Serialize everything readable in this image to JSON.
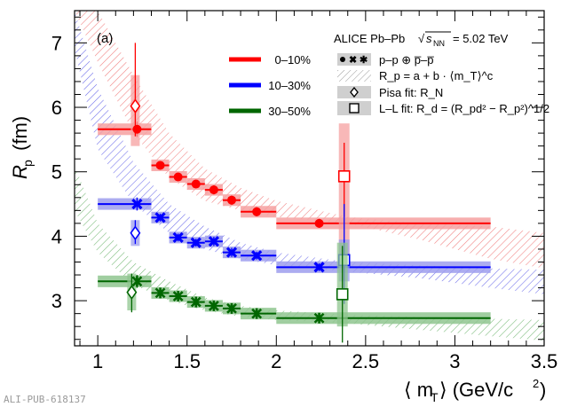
{
  "chart_data": {
    "type": "scatter",
    "panel_label": "(a)",
    "experiment": "ALICE Pb–Pb",
    "energy_symbol": "s",
    "energy_subscript": "NN",
    "energy_value": "= 5.02 TeV",
    "xlabel": "⟨ m",
    "xlabel_sub": "T",
    "xlabel_unit": "⟩ (GeV/c",
    "xlabel_unit_sup": "2",
    "xlabel_close": ")",
    "ylabel": "R",
    "ylabel_sub": "p",
    "ylabel_unit": "(fm)",
    "xlim": [
      0.87,
      3.5
    ],
    "ylim": [
      2.3,
      7.5
    ],
    "xticks": [
      1,
      1.5,
      2,
      2.5,
      3,
      3.5
    ],
    "xtick_labels": [
      "1",
      "1.5",
      "2",
      "2.5",
      "3",
      "3.5"
    ],
    "yticks": [
      3,
      4,
      5,
      6,
      7
    ],
    "ytick_labels": [
      "3",
      "4",
      "5",
      "6",
      "7"
    ],
    "watermark": "ALI-PUB-618137",
    "legend_centrality": [
      {
        "label": "0–10%",
        "color": "#ff0000"
      },
      {
        "label": "10–30%",
        "color": "#0000ff"
      },
      {
        "label": "30–50%",
        "color": "#006600"
      }
    ],
    "legend_symbols": [
      {
        "label": "p–p ⊕ p̅–p̅",
        "kind": "markers"
      },
      {
        "label": "R_p = a + b · ⟨m_T⟩^c",
        "kind": "hatch"
      },
      {
        "label": "Pisa fit: R_N",
        "kind": "diamond"
      },
      {
        "label": "L–L fit: R_d = (R_pd² − R_p²)^1/2",
        "kind": "square"
      }
    ],
    "series": [
      {
        "name": "0–10%",
        "color": "#ff0000",
        "fill": "#f6a0a0",
        "points": [
          {
            "x": 1.22,
            "y": 5.66,
            "xlo": 1.0,
            "xhi": 1.3,
            "ey": 0.12,
            "marker": "circle"
          },
          {
            "x": 1.35,
            "y": 5.1,
            "xlo": 1.3,
            "xhi": 1.4,
            "ey": 0.06,
            "marker": "circle"
          },
          {
            "x": 1.45,
            "y": 4.92,
            "xlo": 1.4,
            "xhi": 1.5,
            "ey": 0.06,
            "marker": "circle"
          },
          {
            "x": 1.55,
            "y": 4.81,
            "xlo": 1.5,
            "xhi": 1.6,
            "ey": 0.06,
            "marker": "circle"
          },
          {
            "x": 1.65,
            "y": 4.72,
            "xlo": 1.6,
            "xhi": 1.7,
            "ey": 0.07,
            "marker": "circle"
          },
          {
            "x": 1.75,
            "y": 4.56,
            "xlo": 1.7,
            "xhi": 1.8,
            "ey": 0.07,
            "marker": "circle"
          },
          {
            "x": 1.89,
            "y": 4.38,
            "xlo": 1.8,
            "xhi": 2.0,
            "ey": 0.07,
            "marker": "circle"
          },
          {
            "x": 2.24,
            "y": 4.2,
            "xlo": 2.0,
            "xhi": 3.2,
            "ey": 0.07,
            "marker": "circle"
          }
        ],
        "fit_band": [
          {
            "x": 0.87,
            "ylo": 7.5,
            "yhi": 7.5
          },
          {
            "x": 1.0,
            "ylo": 6.7,
            "yhi": 7.5
          },
          {
            "x": 1.2,
            "ylo": 5.6,
            "yhi": 6.5
          },
          {
            "x": 1.4,
            "ylo": 4.9,
            "yhi": 5.6
          },
          {
            "x": 1.6,
            "ylo": 4.55,
            "yhi": 5.05
          },
          {
            "x": 1.8,
            "ylo": 4.4,
            "yhi": 4.75
          },
          {
            "x": 2.0,
            "ylo": 4.3,
            "yhi": 4.55
          },
          {
            "x": 2.4,
            "ylo": 4.2,
            "yhi": 4.3
          },
          {
            "x": 2.8,
            "ylo": 3.95,
            "yhi": 4.2
          },
          {
            "x": 3.2,
            "ylo": 3.65,
            "yhi": 4.15
          },
          {
            "x": 3.5,
            "ylo": 3.5,
            "yhi": 4.05
          }
        ],
        "pisa": {
          "x": 1.21,
          "y": 6.02,
          "elo": 5.55,
          "ehi": 7.0,
          "syslo": 5.4,
          "syshi": 6.5
        },
        "ll": {
          "x": 2.38,
          "y": 4.93,
          "elo": 4.3,
          "ehi": 5.45,
          "syslo": 3.6,
          "syshi": 5.75
        }
      },
      {
        "name": "10–30%",
        "color": "#0000ff",
        "fill": "#9d9ded",
        "points": [
          {
            "x": 1.22,
            "y": 4.5,
            "xlo": 1.0,
            "xhi": 1.3,
            "ey": 0.1,
            "marker": "cross"
          },
          {
            "x": 1.35,
            "y": 4.29,
            "xlo": 1.3,
            "xhi": 1.4,
            "ey": 0.06,
            "marker": "cross"
          },
          {
            "x": 1.45,
            "y": 3.98,
            "xlo": 1.4,
            "xhi": 1.5,
            "ey": 0.06,
            "marker": "cross"
          },
          {
            "x": 1.55,
            "y": 3.9,
            "xlo": 1.5,
            "xhi": 1.6,
            "ey": 0.06,
            "marker": "cross"
          },
          {
            "x": 1.65,
            "y": 3.92,
            "xlo": 1.6,
            "xhi": 1.7,
            "ey": 0.07,
            "marker": "cross"
          },
          {
            "x": 1.75,
            "y": 3.75,
            "xlo": 1.7,
            "xhi": 1.8,
            "ey": 0.07,
            "marker": "cross"
          },
          {
            "x": 1.89,
            "y": 3.7,
            "xlo": 1.8,
            "xhi": 2.0,
            "ey": 0.06,
            "marker": "cross"
          },
          {
            "x": 2.24,
            "y": 3.52,
            "xlo": 2.0,
            "xhi": 3.2,
            "ey": 0.06,
            "marker": "cross"
          }
        ],
        "fit_band": [
          {
            "x": 0.87,
            "ylo": 6.9,
            "yhi": 7.5
          },
          {
            "x": 1.0,
            "ylo": 5.35,
            "yhi": 6.3
          },
          {
            "x": 1.2,
            "ylo": 4.5,
            "yhi": 5.15
          },
          {
            "x": 1.4,
            "ylo": 4.05,
            "yhi": 4.5
          },
          {
            "x": 1.6,
            "ylo": 3.8,
            "yhi": 4.15
          },
          {
            "x": 1.8,
            "ylo": 3.65,
            "yhi": 3.9
          },
          {
            "x": 2.0,
            "ylo": 3.55,
            "yhi": 3.75
          },
          {
            "x": 2.4,
            "ylo": 3.45,
            "yhi": 3.6
          },
          {
            "x": 2.8,
            "ylo": 3.35,
            "yhi": 3.55
          },
          {
            "x": 3.2,
            "ylo": 3.2,
            "yhi": 3.5
          },
          {
            "x": 3.5,
            "ylo": 3.1,
            "yhi": 3.48
          }
        ],
        "pisa": {
          "x": 1.21,
          "y": 4.05,
          "elo": 3.88,
          "ehi": 4.25,
          "syslo": 3.85,
          "syshi": 4.25
        },
        "ll": {
          "x": 2.38,
          "y": 3.63,
          "elo": 2.95,
          "ehi": 4.5,
          "syslo": 3.3,
          "syshi": 3.95
        }
      },
      {
        "name": "30–50%",
        "color": "#006600",
        "fill": "#8fc58f",
        "points": [
          {
            "x": 1.22,
            "y": 3.3,
            "xlo": 1.0,
            "xhi": 1.3,
            "ey": 0.1,
            "marker": "star"
          },
          {
            "x": 1.35,
            "y": 3.12,
            "xlo": 1.3,
            "xhi": 1.4,
            "ey": 0.06,
            "marker": "star"
          },
          {
            "x": 1.45,
            "y": 3.07,
            "xlo": 1.4,
            "xhi": 1.5,
            "ey": 0.06,
            "marker": "star"
          },
          {
            "x": 1.55,
            "y": 2.98,
            "xlo": 1.5,
            "xhi": 1.6,
            "ey": 0.06,
            "marker": "star"
          },
          {
            "x": 1.65,
            "y": 2.92,
            "xlo": 1.6,
            "xhi": 1.7,
            "ey": 0.06,
            "marker": "star"
          },
          {
            "x": 1.75,
            "y": 2.88,
            "xlo": 1.7,
            "xhi": 1.8,
            "ey": 0.06,
            "marker": "star"
          },
          {
            "x": 1.89,
            "y": 2.8,
            "xlo": 1.8,
            "xhi": 2.0,
            "ey": 0.06,
            "marker": "star"
          },
          {
            "x": 2.24,
            "y": 2.73,
            "xlo": 2.0,
            "xhi": 3.2,
            "ey": 0.06,
            "marker": "star"
          }
        ],
        "fit_band": [
          {
            "x": 0.87,
            "ylo": 4.4,
            "yhi": 5.1
          },
          {
            "x": 1.0,
            "ylo": 3.75,
            "yhi": 4.2
          },
          {
            "x": 1.2,
            "ylo": 3.25,
            "yhi": 3.6
          },
          {
            "x": 1.4,
            "ylo": 3.0,
            "yhi": 3.3
          },
          {
            "x": 1.6,
            "ylo": 2.85,
            "yhi": 3.05
          },
          {
            "x": 1.8,
            "ylo": 2.75,
            "yhi": 2.92
          },
          {
            "x": 2.0,
            "ylo": 2.7,
            "yhi": 2.85
          },
          {
            "x": 2.4,
            "ylo": 2.65,
            "yhi": 2.78
          },
          {
            "x": 2.8,
            "ylo": 2.55,
            "yhi": 2.75
          },
          {
            "x": 3.2,
            "ylo": 2.45,
            "yhi": 2.72
          },
          {
            "x": 3.5,
            "ylo": 2.38,
            "yhi": 2.7
          }
        ],
        "pisa": {
          "x": 1.19,
          "y": 3.13,
          "elo": 2.82,
          "ehi": 3.42,
          "syslo": 2.85,
          "syshi": 3.42
        },
        "ll": {
          "x": 2.37,
          "y": 3.1,
          "elo": 2.35,
          "ehi": 3.85,
          "syslo": 2.6,
          "syshi": 3.9
        }
      }
    ]
  }
}
